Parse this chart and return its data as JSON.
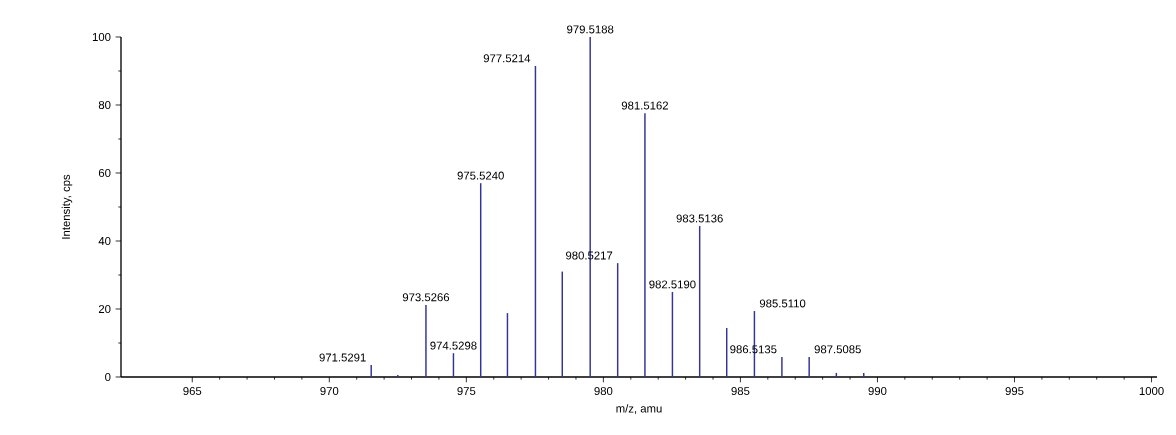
{
  "chart_data": {
    "type": "bar",
    "xlabel": "m/z, amu",
    "ylabel": "Intensity, cps",
    "x": [
      971.5291,
      972.5,
      973.5266,
      974.5298,
      975.524,
      976.5,
      977.5214,
      978.5,
      979.5188,
      980.5217,
      981.5162,
      982.519,
      983.5136,
      984.5,
      985.511,
      986.5135,
      987.5085,
      988.5,
      989.5
    ],
    "values": [
      3.5,
      0.6,
      21.2,
      7,
      57,
      18.8,
      91.5,
      31,
      100,
      33.5,
      77.6,
      25,
      44.4,
      14.4,
      19.4,
      5.9,
      5.9,
      1.2,
      1.2
    ],
    "color": "#333399",
    "xlim": [
      962.4,
      1000.2
    ],
    "ylim": [
      0,
      100
    ],
    "xticks": [
      965,
      970,
      975,
      980,
      985,
      990,
      995,
      1000
    ],
    "yticks": [
      0,
      20,
      40,
      60,
      80,
      100
    ],
    "annotations": [
      {
        "text": "971.5291",
        "x": 971.5291,
        "y": 3.5
      },
      {
        "text": "973.5266",
        "x": 973.5266,
        "y": 21.2
      },
      {
        "text": "974.5298",
        "x": 974.5298,
        "y": 7
      },
      {
        "text": "975.5240",
        "x": 975.524,
        "y": 57
      },
      {
        "text": "977.5214",
        "x": 977.5214,
        "y": 91.5
      },
      {
        "text": "979.5188",
        "x": 979.5188,
        "y": 100
      },
      {
        "text": "980.5217",
        "x": 980.5217,
        "y": 33.5
      },
      {
        "text": "981.5162",
        "x": 981.5162,
        "y": 77.6
      },
      {
        "text": "982.5190",
        "x": 982.519,
        "y": 25
      },
      {
        "text": "983.5136",
        "x": 983.5136,
        "y": 44.4
      },
      {
        "text": "985.5110",
        "x": 985.511,
        "y": 19.4
      },
      {
        "text": "986.5135",
        "x": 986.5135,
        "y": 5.9
      },
      {
        "text": "987.5085",
        "x": 987.5085,
        "y": 5.9
      }
    ]
  }
}
